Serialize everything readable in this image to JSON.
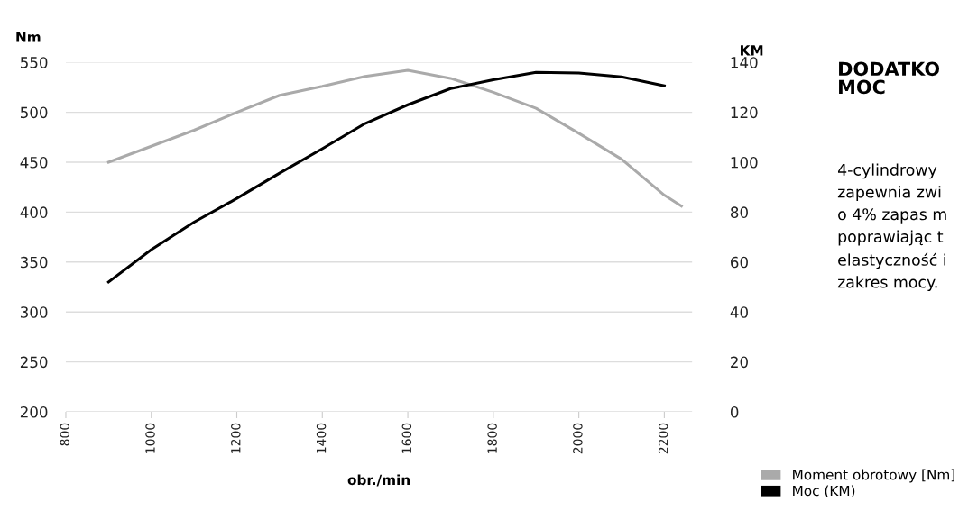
{
  "chart_data": {
    "type": "line",
    "xlabel": "obr./min",
    "ylabel": "Nm",
    "y2label": "KM",
    "x": [
      900,
      1000,
      1100,
      1200,
      1300,
      1400,
      1500,
      1600,
      1700,
      1800,
      1900,
      2000,
      2100,
      2200
    ],
    "series": [
      {
        "name": "Moment obrotowy [Nm]",
        "color": "#aaaaaa",
        "x": [
          900,
          1000,
          1100,
          1200,
          1300,
          1400,
          1500,
          1600,
          1700,
          1800,
          1900,
          2000,
          2100,
          2200,
          2240
        ],
        "values": [
          450,
          466,
          482,
          500,
          517,
          526,
          536,
          542,
          534,
          520,
          504,
          479,
          453,
          417,
          406
        ]
      },
      {
        "name": "Moc (KM)",
        "color": "#000000",
        "axis": "y2",
        "values": [
          52,
          65,
          76,
          85.5,
          95.6,
          105.4,
          115.5,
          123,
          129.5,
          133,
          136,
          135.7,
          134.2,
          130.6
        ]
      }
    ],
    "xlim": [
      800,
      2265
    ],
    "xticks": [
      800,
      1000,
      1200,
      1400,
      1600,
      1800,
      2000,
      2200
    ],
    "ylim": [
      200,
      550
    ],
    "yticks": [
      200,
      250,
      300,
      350,
      400,
      450,
      500,
      550
    ],
    "y2lim": [
      0,
      140
    ],
    "y2ticks": [
      0,
      20,
      40,
      60,
      80,
      100,
      120,
      140
    ],
    "grid": "y",
    "legend": "bottom right",
    "marker": "none",
    "line_style": "solid",
    "annotations": [
      "DODATKO\nMOC",
      "4-cylindrowy\nzapewnia zwi\no 4% zapas m\npoprawiając t\nelastyczność i\nzakres mocy."
    ]
  }
}
